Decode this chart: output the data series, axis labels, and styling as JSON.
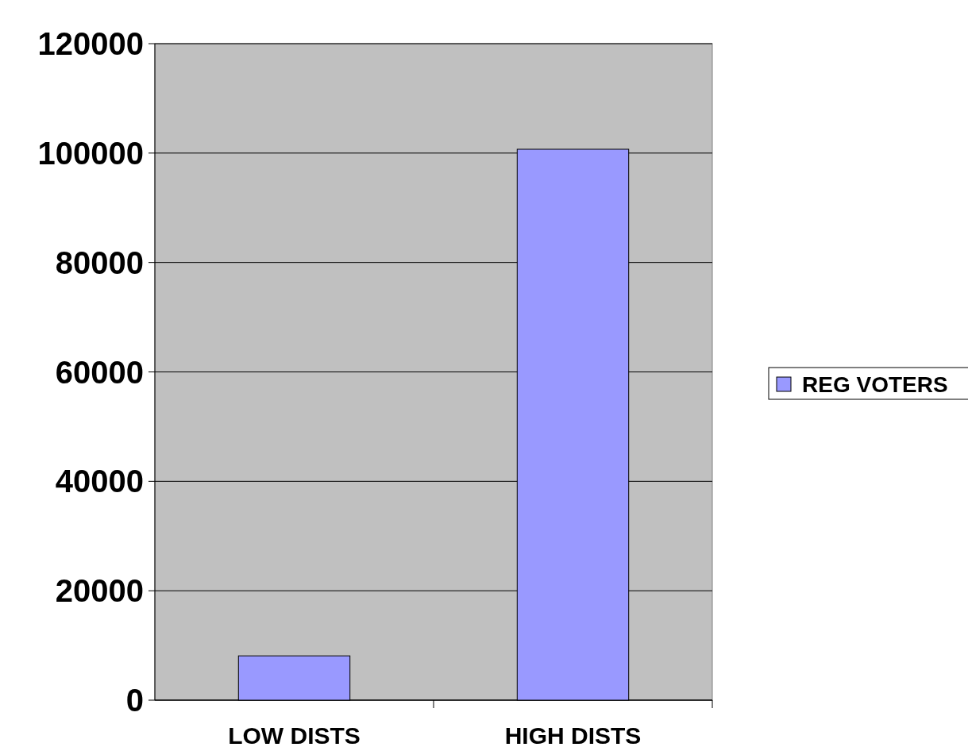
{
  "chart_data": {
    "type": "bar",
    "categories": [
      "LOW DISTS",
      "HIGH DISTS"
    ],
    "series": [
      {
        "name": "REG VOTERS",
        "color": "#9999ff",
        "values": [
          8100,
          100700
        ]
      }
    ],
    "ylim": [
      0,
      120000
    ],
    "yticks": [
      0,
      20000,
      40000,
      60000,
      80000,
      100000,
      120000
    ],
    "grid": "y",
    "legend": "right"
  }
}
